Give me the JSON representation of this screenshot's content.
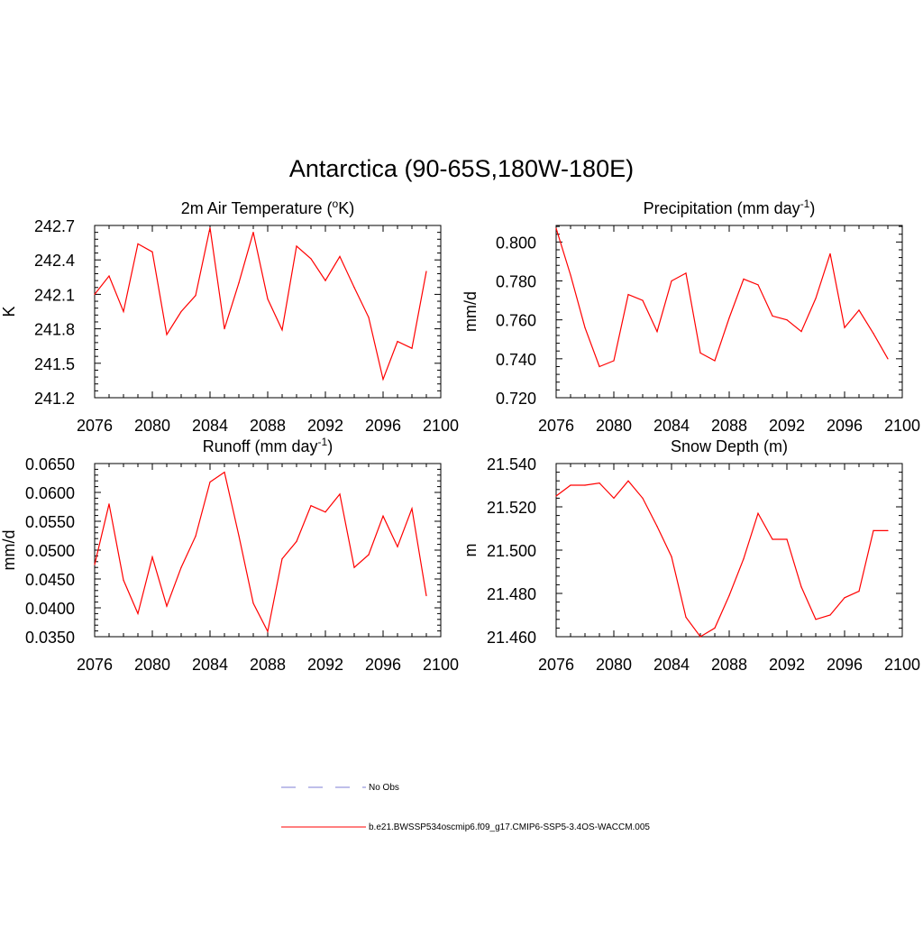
{
  "title": "Antarctica (90-65S,180W-180E)",
  "colors": {
    "model": "#ff0000",
    "obs": "#9999dd",
    "axis": "#000000"
  },
  "legend": {
    "obs_label": "No Obs",
    "model_label": "b.e21.BWSSP534oscmip6.f09_g17.CMIP6-SSP5-3.4OS-WACCM.005"
  },
  "chart_data": [
    {
      "type": "line",
      "title": "2m Air Temperature (oK)",
      "ylabel": "K",
      "xlim": [
        2076,
        2100
      ],
      "ylim": [
        241.2,
        242.7
      ],
      "xticks": [
        2076,
        2080,
        2084,
        2088,
        2092,
        2096,
        2100
      ],
      "yticks": [
        "241.2",
        "241.5",
        "241.8",
        "242.1",
        "242.4",
        "242.7"
      ],
      "series": [
        {
          "x": [
            2076,
            2077,
            2078,
            2079,
            2080,
            2081,
            2082,
            2083,
            2084,
            2085,
            2086,
            2087,
            2088,
            2089,
            2090,
            2091,
            2092,
            2093,
            2094,
            2095,
            2096,
            2097,
            2098,
            2099
          ],
          "values": [
            242.1,
            242.26,
            241.95,
            242.54,
            242.47,
            241.75,
            241.95,
            242.09,
            242.68,
            241.8,
            242.2,
            242.64,
            242.06,
            241.79,
            242.52,
            242.41,
            242.22,
            242.43,
            242.16,
            241.9,
            241.36,
            241.69,
            241.63,
            242.3
          ]
        }
      ]
    },
    {
      "type": "line",
      "title": "Precipitation (mm day-1)",
      "ylabel": "mm/d",
      "xlim": [
        2076,
        2100
      ],
      "ylim": [
        0.72,
        0.8085
      ],
      "xticks": [
        2076,
        2080,
        2084,
        2088,
        2092,
        2096,
        2100
      ],
      "yticks": [
        "0.720",
        "0.740",
        "0.760",
        "0.780",
        "0.800"
      ],
      "series": [
        {
          "x": [
            2076,
            2077,
            2078,
            2079,
            2080,
            2081,
            2082,
            2083,
            2084,
            2085,
            2086,
            2087,
            2088,
            2089,
            2090,
            2091,
            2092,
            2093,
            2094,
            2095,
            2096,
            2097,
            2098,
            2099
          ],
          "values": [
            0.807,
            0.783,
            0.756,
            0.736,
            0.739,
            0.773,
            0.77,
            0.754,
            0.78,
            0.784,
            0.743,
            0.739,
            0.761,
            0.781,
            0.778,
            0.762,
            0.76,
            0.754,
            0.771,
            0.794,
            0.756,
            0.765,
            0.753,
            0.74
          ]
        }
      ]
    },
    {
      "type": "line",
      "title": "Runoff (mm day-1)",
      "ylabel": "mm/d",
      "xlim": [
        2076,
        2100
      ],
      "ylim": [
        0.035,
        0.065
      ],
      "xticks": [
        2076,
        2080,
        2084,
        2088,
        2092,
        2096,
        2100
      ],
      "yticks": [
        "0.0350",
        "0.0400",
        "0.0450",
        "0.0500",
        "0.0550",
        "0.0600",
        "0.0650"
      ],
      "series": [
        {
          "x": [
            2076,
            2077,
            2078,
            2079,
            2080,
            2081,
            2082,
            2083,
            2084,
            2085,
            2086,
            2087,
            2088,
            2089,
            2090,
            2091,
            2092,
            2093,
            2094,
            2095,
            2096,
            2097,
            2098,
            2099
          ],
          "values": [
            0.0475,
            0.058,
            0.0448,
            0.039,
            0.0488,
            0.0403,
            0.047,
            0.0524,
            0.0618,
            0.0635,
            0.0525,
            0.0408,
            0.0359,
            0.0485,
            0.0515,
            0.0577,
            0.0566,
            0.0597,
            0.047,
            0.0492,
            0.0559,
            0.0506,
            0.0572,
            0.0421
          ]
        }
      ]
    },
    {
      "type": "line",
      "title": "Snow Depth (m)",
      "ylabel": "m",
      "xlim": [
        2076,
        2100
      ],
      "ylim": [
        21.46,
        21.54
      ],
      "xticks": [
        2076,
        2080,
        2084,
        2088,
        2092,
        2096,
        2100
      ],
      "yticks": [
        "21.460",
        "21.480",
        "21.500",
        "21.520",
        "21.540"
      ],
      "series": [
        {
          "x": [
            2076,
            2077,
            2078,
            2079,
            2080,
            2081,
            2082,
            2083,
            2084,
            2085,
            2086,
            2087,
            2088,
            2089,
            2090,
            2091,
            2092,
            2093,
            2094,
            2095,
            2096,
            2097,
            2098,
            2099
          ],
          "values": [
            21.525,
            21.53,
            21.53,
            21.531,
            21.524,
            21.532,
            21.524,
            21.511,
            21.497,
            21.469,
            21.46,
            21.464,
            21.479,
            21.496,
            21.517,
            21.505,
            21.505,
            21.483,
            21.468,
            21.47,
            21.478,
            21.481,
            21.509,
            21.509
          ]
        }
      ]
    }
  ]
}
